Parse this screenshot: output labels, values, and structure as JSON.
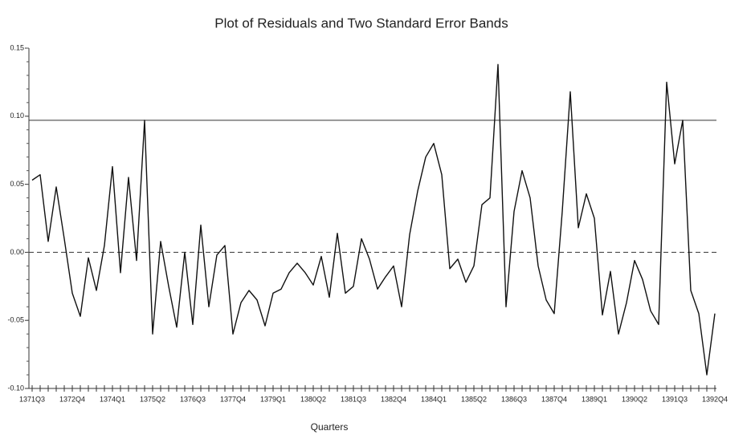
{
  "chart_data": {
    "type": "line",
    "title": "Plot of Residuals and Two Standard Error Bands",
    "x_label": "Quarters",
    "categories": [
      "1371Q3",
      null,
      null,
      null,
      null,
      "1372Q4",
      null,
      null,
      null,
      null,
      "1374Q1",
      null,
      null,
      null,
      null,
      "1375Q2",
      null,
      null,
      null,
      null,
      "1376Q3",
      null,
      null,
      null,
      null,
      "1377Q4",
      null,
      null,
      null,
      null,
      "1379Q1",
      null,
      null,
      null,
      null,
      "1380Q2",
      null,
      null,
      null,
      null,
      "1381Q3",
      null,
      null,
      null,
      null,
      "1382Q4",
      null,
      null,
      null,
      null,
      "1384Q1",
      null,
      null,
      null,
      null,
      "1385Q2",
      null,
      null,
      null,
      null,
      "1386Q3",
      null,
      null,
      null,
      null,
      "1387Q4",
      null,
      null,
      null,
      null,
      "1389Q1",
      null,
      null,
      null,
      null,
      "1390Q2",
      null,
      null,
      null,
      null,
      "1391Q3",
      null,
      null,
      null,
      null,
      "1392Q4"
    ],
    "values": [
      0.053,
      0.057,
      0.008,
      0.048,
      0.01,
      -0.03,
      -0.047,
      -0.004,
      -0.028,
      0.005,
      0.063,
      -0.015,
      0.055,
      -0.006,
      0.097,
      -0.06,
      0.008,
      -0.025,
      -0.055,
      0.0,
      -0.053,
      0.02,
      -0.04,
      -0.002,
      0.005,
      -0.06,
      -0.037,
      -0.028,
      -0.035,
      -0.054,
      -0.03,
      -0.027,
      -0.015,
      -0.008,
      -0.015,
      -0.024,
      -0.003,
      -0.033,
      0.014,
      -0.03,
      -0.025,
      0.01,
      -0.005,
      -0.027,
      -0.018,
      -0.01,
      -0.04,
      0.013,
      0.045,
      0.07,
      0.08,
      0.057,
      -0.012,
      -0.005,
      -0.022,
      -0.01,
      0.035,
      0.04,
      0.138,
      -0.04,
      0.03,
      0.06,
      0.04,
      -0.01,
      -0.035,
      -0.045,
      0.03,
      0.118,
      0.018,
      0.043,
      0.025,
      -0.046,
      -0.014,
      -0.06,
      -0.037,
      -0.006,
      -0.02,
      -0.043,
      -0.053,
      0.125,
      0.065,
      0.097,
      -0.028,
      -0.045,
      -0.09,
      -0.045
    ],
    "color": "#111111",
    "ylim": [
      -0.1,
      0.15
    ],
    "yticks": [
      {
        "value": -0.1,
        "label": "-0.10"
      },
      {
        "value": -0.05,
        "label": "-0.05"
      },
      {
        "value": 0,
        "label": "0.00"
      },
      {
        "value": 0.05,
        "label": "0.05"
      },
      {
        "value": 0.1,
        "label": "0.10"
      },
      0.15
    ],
    "hlines": [
      {
        "value": 0.097,
        "style": "solid"
      },
      {
        "value": 0,
        "style": "dashed"
      }
    ]
  }
}
